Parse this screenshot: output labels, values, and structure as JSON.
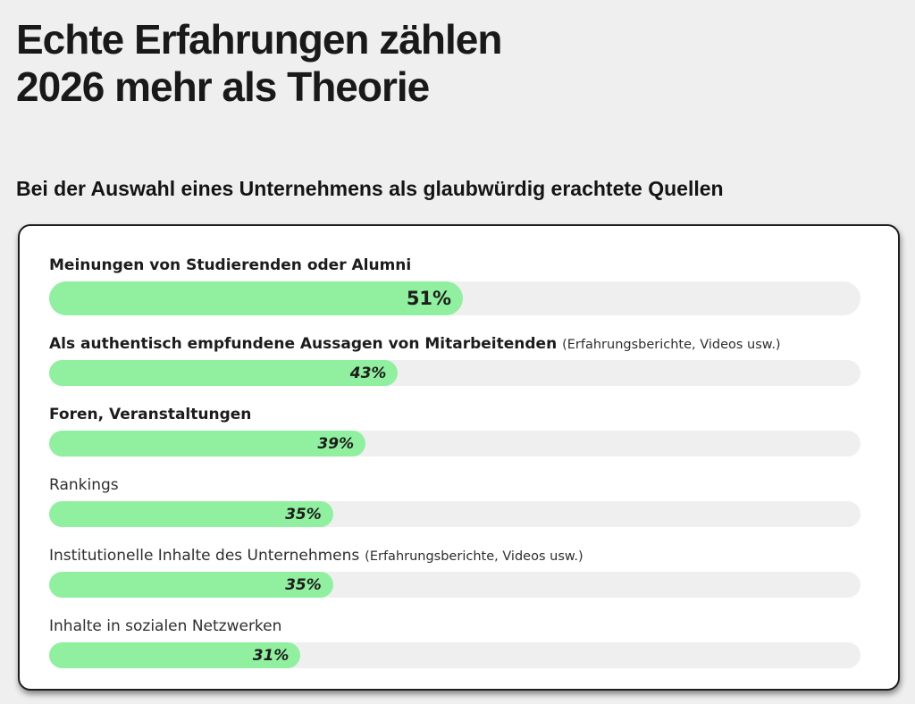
{
  "page": {
    "title_line1": "Echte Erfahrungen zählen",
    "title_line2": "2026 mehr als Theorie",
    "subtitle": "Bei der Auswahl eines Unternehmens als glaubwürdig erachtete Quellen"
  },
  "colors": {
    "page_background": "#efefef",
    "card_background": "#ffffff",
    "card_border": "#1e1e1e",
    "bar_fill_green": "#90f0a0",
    "bar_track_gray": "#efefef",
    "text": "#1b1b1b"
  },
  "chart_data": {
    "type": "bar",
    "orientation": "horizontal",
    "title": "Echte Erfahrungen zählen 2026 mehr als Theorie",
    "subtitle": "Bei der Auswahl eines Unternehmens als glaubwürdig erachtete Quellen",
    "unit": "%",
    "value_axis_range": [
      0,
      100
    ],
    "grid": false,
    "legend": false,
    "categories": [
      "Meinungen von Studierenden oder Alumni",
      "Als authentisch empfundene Aussagen von Mitarbeitenden (Erfahrungsberichte, Videos usw.)",
      "Foren, Veranstaltungen",
      "Rankings",
      "Institutionelle Inhalte des Unternehmens (Erfahrungsberichte, Videos usw.)",
      "Inhalte in sozialen Netzwerken"
    ],
    "values": [
      51,
      43,
      39,
      35,
      35,
      31
    ],
    "bars": [
      {
        "label": "Meinungen von Studierenden oder Alumni",
        "note": "",
        "value": 51,
        "value_label": "51%",
        "label_bold": true,
        "highlight": true
      },
      {
        "label": "Als authentisch empfundene Aussagen von Mitarbeitenden",
        "note": "(Erfahrungsberichte, Videos usw.)",
        "value": 43,
        "value_label": "43%",
        "label_bold": true,
        "highlight": false
      },
      {
        "label": "Foren, Veranstaltungen",
        "note": "",
        "value": 39,
        "value_label": "39%",
        "label_bold": true,
        "highlight": false
      },
      {
        "label": "Rankings",
        "note": "",
        "value": 35,
        "value_label": "35%",
        "label_bold": false,
        "highlight": false
      },
      {
        "label": "Institutionelle Inhalte des Unternehmens",
        "note": "(Erfahrungsberichte, Videos usw.)",
        "value": 35,
        "value_label": "35%",
        "label_bold": false,
        "highlight": false
      },
      {
        "label": "Inhalte in sozialen Netzwerken",
        "note": "",
        "value": 31,
        "value_label": "31%",
        "label_bold": false,
        "highlight": false
      }
    ]
  }
}
